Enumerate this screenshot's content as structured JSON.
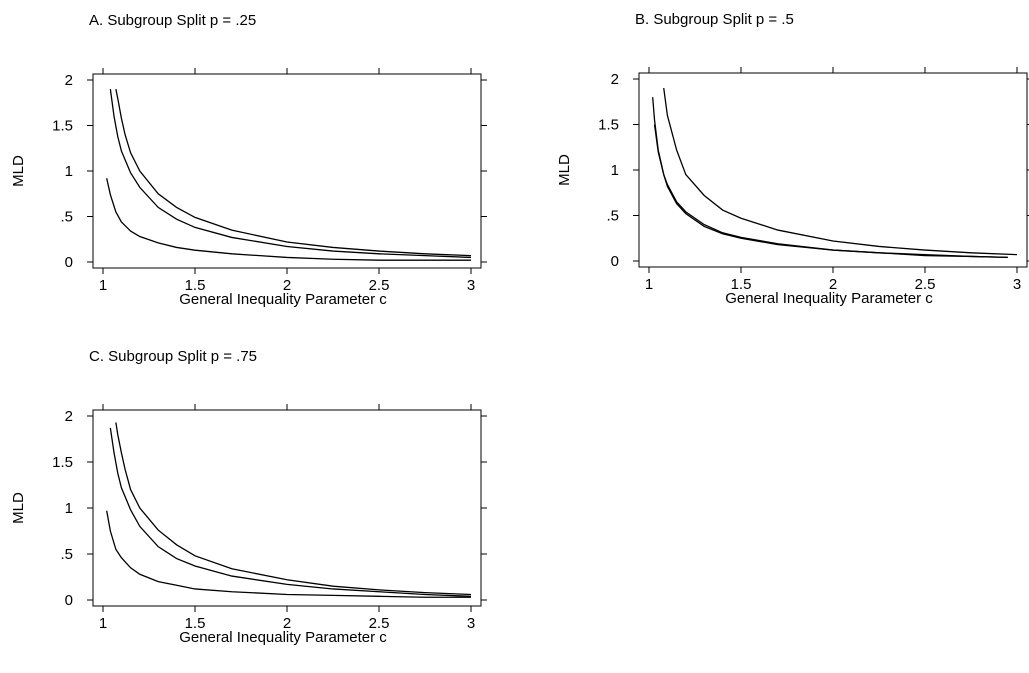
{
  "chart_data": [
    {
      "type": "line",
      "title": "A. Subgroup Split p = .25",
      "xlabel": "General Inequality Parameter c",
      "ylabel": "MLD",
      "xlim": [
        1,
        3
      ],
      "ylim": [
        0,
        2
      ],
      "xticks": [
        1,
        1.5,
        2,
        2.5,
        3
      ],
      "xtick_labels": [
        "1",
        "1.5",
        "2",
        "2.5",
        "3"
      ],
      "yticks": [
        0,
        0.5,
        1,
        1.5,
        2
      ],
      "ytick_labels": [
        "0",
        ".5",
        "1",
        "1.5",
        "2"
      ],
      "grid": false,
      "series": [
        {
          "x": [
            1.02,
            1.04,
            1.07,
            1.1,
            1.15,
            1.2,
            1.3,
            1.4,
            1.5,
            1.7,
            2.0,
            2.25,
            2.5,
            2.75,
            3.0
          ],
          "values": [
            0.92,
            0.74,
            0.55,
            0.44,
            0.34,
            0.28,
            0.21,
            0.16,
            0.13,
            0.09,
            0.05,
            0.03,
            0.02,
            0.02,
            0.02
          ]
        },
        {
          "x": [
            1.04,
            1.06,
            1.08,
            1.1,
            1.15,
            1.2,
            1.3,
            1.4,
            1.5,
            1.7,
            2.0,
            2.25,
            2.5,
            2.75,
            3.0
          ],
          "values": [
            1.9,
            1.6,
            1.38,
            1.22,
            0.98,
            0.82,
            0.6,
            0.47,
            0.38,
            0.27,
            0.17,
            0.12,
            0.09,
            0.07,
            0.05
          ]
        },
        {
          "x": [
            1.07,
            1.08,
            1.1,
            1.12,
            1.15,
            1.2,
            1.3,
            1.4,
            1.5,
            1.7,
            2.0,
            2.25,
            2.5,
            2.75,
            3.0
          ],
          "values": [
            1.9,
            1.8,
            1.58,
            1.4,
            1.2,
            1.0,
            0.75,
            0.6,
            0.49,
            0.35,
            0.22,
            0.16,
            0.12,
            0.09,
            0.07
          ]
        }
      ]
    },
    {
      "type": "line",
      "title": "B. Subgroup Split p = .5",
      "xlabel": "General Inequality Parameter c",
      "ylabel": "MLD",
      "xlim": [
        1,
        3
      ],
      "ylim": [
        0,
        2
      ],
      "xticks": [
        1,
        1.5,
        2,
        2.5,
        3
      ],
      "xtick_labels": [
        "1",
        "1.5",
        "2",
        "2.5",
        "3"
      ],
      "yticks": [
        0,
        0.5,
        1,
        1.5,
        2
      ],
      "ytick_labels": [
        "0",
        ".5",
        "1",
        "1.5",
        "2"
      ],
      "grid": false,
      "series": [
        {
          "x": [
            1.02,
            1.03,
            1.05,
            1.08,
            1.1,
            1.15,
            1.2,
            1.3,
            1.4,
            1.5,
            1.7,
            2.0,
            2.25,
            2.5,
            2.75,
            2.95
          ],
          "values": [
            1.8,
            1.55,
            1.22,
            0.95,
            0.82,
            0.63,
            0.52,
            0.38,
            0.3,
            0.25,
            0.18,
            0.12,
            0.09,
            0.06,
            0.05,
            0.04
          ]
        },
        {
          "x": [
            1.03,
            1.05,
            1.08,
            1.1,
            1.15,
            1.2,
            1.3,
            1.4,
            1.5,
            1.7,
            2.0,
            2.25,
            2.5,
            2.75,
            2.95
          ],
          "values": [
            1.5,
            1.2,
            0.95,
            0.84,
            0.65,
            0.54,
            0.4,
            0.31,
            0.26,
            0.19,
            0.12,
            0.09,
            0.07,
            0.05,
            0.04
          ]
        },
        {
          "x": [
            1.08,
            1.1,
            1.15,
            1.2,
            1.3,
            1.4,
            1.5,
            1.7,
            2.0,
            2.25,
            2.5,
            2.75,
            3.0
          ],
          "values": [
            1.9,
            1.6,
            1.22,
            0.95,
            0.72,
            0.56,
            0.47,
            0.34,
            0.22,
            0.16,
            0.12,
            0.09,
            0.07
          ]
        }
      ]
    },
    {
      "type": "line",
      "title": "C. Subgroup Split p = .75",
      "xlabel": "General Inequality Parameter c",
      "ylabel": "MLD",
      "xlim": [
        1,
        3
      ],
      "ylim": [
        0,
        2
      ],
      "xticks": [
        1,
        1.5,
        2,
        2.5,
        3
      ],
      "xtick_labels": [
        "1",
        "1.5",
        "2",
        "2.5",
        "3"
      ],
      "yticks": [
        0,
        0.5,
        1,
        1.5,
        2
      ],
      "ytick_labels": [
        "0",
        ".5",
        "1",
        "1.5",
        "2"
      ],
      "grid": false,
      "series": [
        {
          "x": [
            1.02,
            1.04,
            1.07,
            1.1,
            1.15,
            1.2,
            1.3,
            1.4,
            1.5,
            1.7,
            2.0,
            2.25,
            2.5,
            2.75,
            3.0
          ],
          "values": [
            0.97,
            0.75,
            0.55,
            0.46,
            0.35,
            0.28,
            0.2,
            0.16,
            0.12,
            0.09,
            0.06,
            0.05,
            0.04,
            0.03,
            0.03
          ]
        },
        {
          "x": [
            1.04,
            1.06,
            1.08,
            1.1,
            1.15,
            1.2,
            1.3,
            1.4,
            1.5,
            1.7,
            2.0,
            2.25,
            2.5,
            2.75,
            3.0
          ],
          "values": [
            1.87,
            1.6,
            1.38,
            1.22,
            0.98,
            0.8,
            0.58,
            0.45,
            0.37,
            0.26,
            0.17,
            0.12,
            0.09,
            0.06,
            0.04
          ]
        },
        {
          "x": [
            1.07,
            1.08,
            1.1,
            1.12,
            1.15,
            1.2,
            1.3,
            1.4,
            1.5,
            1.7,
            2.0,
            2.25,
            2.5,
            2.75,
            3.0
          ],
          "values": [
            1.93,
            1.8,
            1.6,
            1.42,
            1.2,
            1.0,
            0.76,
            0.6,
            0.48,
            0.34,
            0.22,
            0.15,
            0.11,
            0.08,
            0.06
          ]
        }
      ]
    }
  ]
}
